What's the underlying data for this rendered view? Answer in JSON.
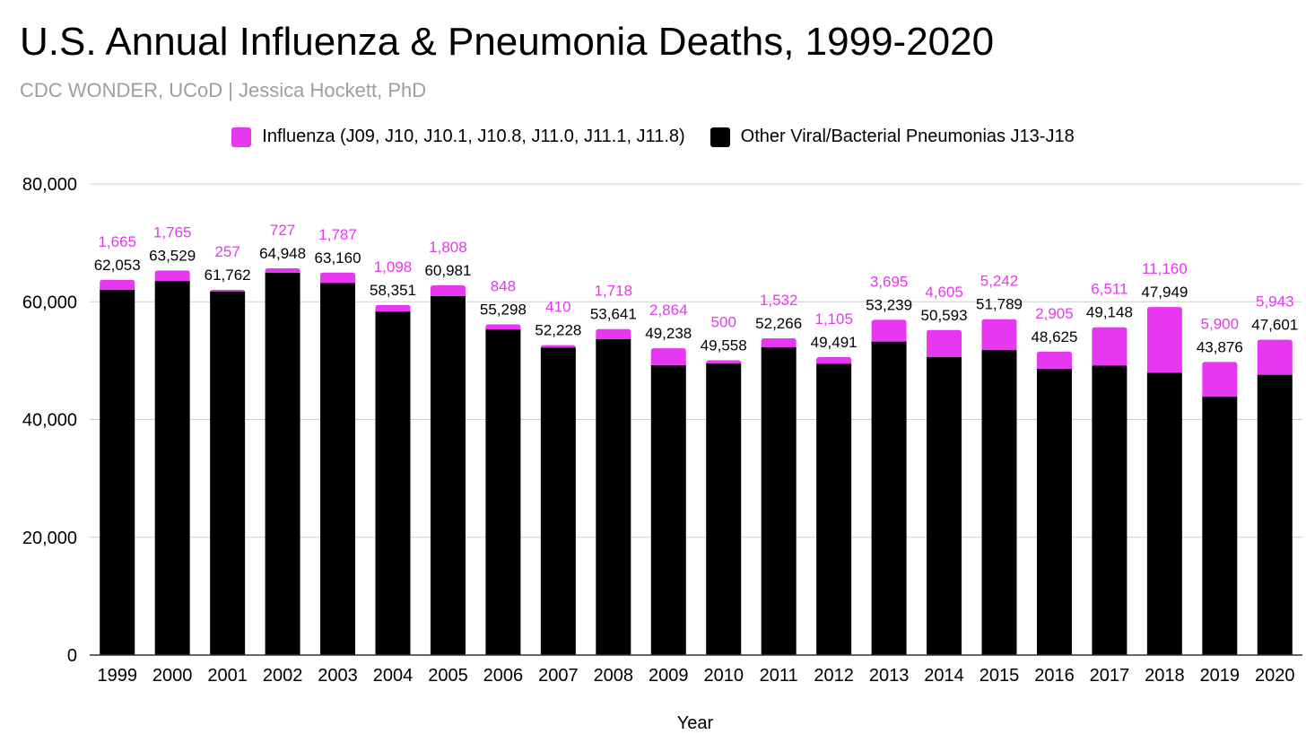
{
  "chart_data": {
    "type": "bar",
    "stacked": true,
    "title": "U.S. Annual Influenza & Pneumonia Deaths, 1999-2020",
    "subtitle": "CDC WONDER, UCoD | Jessica Hockett, PhD",
    "xlabel": "Year",
    "ylabel": "",
    "ylim": [
      0,
      80000
    ],
    "yticks": [
      "0",
      "20,000",
      "40,000",
      "60,000",
      "80,000"
    ],
    "ytick_values": [
      0,
      20000,
      40000,
      60000,
      80000
    ],
    "grid": true,
    "legend_position": "top-center",
    "categories": [
      "1999",
      "2000",
      "2001",
      "2002",
      "2003",
      "2004",
      "2005",
      "2006",
      "2007",
      "2008",
      "2009",
      "2010",
      "2011",
      "2012",
      "2013",
      "2014",
      "2015",
      "2016",
      "2017",
      "2018",
      "2019",
      "2020"
    ],
    "series": [
      {
        "name": "Other Viral/Bacterial Pneumonias J13-J18",
        "color": "#000000",
        "values": [
          62053,
          63529,
          61762,
          64948,
          63160,
          58351,
          60981,
          55298,
          52228,
          53641,
          49238,
          49558,
          52266,
          49491,
          53239,
          50593,
          51789,
          48625,
          49148,
          47949,
          43876,
          47601
        ],
        "labels": [
          "62,053",
          "63,529",
          "61,762",
          "64,948",
          "63,160",
          "58,351",
          "60,981",
          "55,298",
          "52,228",
          "53,641",
          "49,238",
          "49,558",
          "52,266",
          "49,491",
          "53,239",
          "50,593",
          "51,789",
          "48,625",
          "49,148",
          "47,949",
          "43,876",
          "47,601"
        ]
      },
      {
        "name": "Influenza (J09, J10, J10.1, J10.8, J11.0, J11.1, J11.8)",
        "color": "#e837f0",
        "values": [
          1665,
          1765,
          257,
          727,
          1787,
          1098,
          1808,
          848,
          410,
          1718,
          2864,
          500,
          1532,
          1105,
          3695,
          4605,
          5242,
          2905,
          6511,
          11160,
          5900,
          5943
        ],
        "labels": [
          "1,665",
          "1,765",
          "257",
          "727",
          "1,787",
          "1,098",
          "1,808",
          "848",
          "410",
          "1,718",
          "2,864",
          "500",
          "1,532",
          "1,105",
          "3,695",
          "4,605",
          "5,242",
          "2,905",
          "6,511",
          "11,160",
          "5,900",
          "5,943"
        ]
      }
    ],
    "legend_order": [
      1,
      0
    ]
  }
}
